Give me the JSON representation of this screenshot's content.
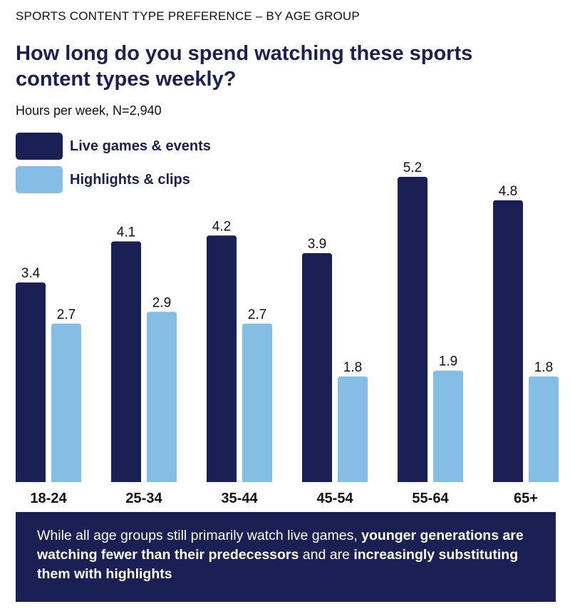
{
  "kicker": "SPORTS CONTENT TYPE PREFERENCE – BY AGE GROUP",
  "colors": {
    "live": "#1a1f54",
    "highlights": "#85bee4",
    "title": "#1a1f54",
    "callout_bg": "#1a1f54"
  },
  "callout": {
    "part1": "While all age groups still primarily watch live games, ",
    "bold1": "younger generations are watching fewer than their predecessors",
    "part2": " and are ",
    "bold2": "increasingly substituting them with highlights"
  },
  "chart_data": {
    "type": "bar",
    "title": "How long do you spend watching these sports content types weekly?",
    "subtitle": "Hours per week, N=2,940",
    "xlabel": "",
    "ylabel": "",
    "ylim": [
      0,
      5.2
    ],
    "legend_position": "top-left",
    "grid": false,
    "categories": [
      "18-24",
      "25-34",
      "35-44",
      "45-54",
      "55-64",
      "65+"
    ],
    "series": [
      {
        "name": "Live games & events",
        "values": [
          3.4,
          4.1,
          4.2,
          3.9,
          5.2,
          4.8
        ],
        "color": "#1a1f54"
      },
      {
        "name": "Highlights & clips",
        "values": [
          2.7,
          2.9,
          2.7,
          1.8,
          1.9,
          1.8
        ],
        "color": "#85bee4"
      }
    ]
  }
}
